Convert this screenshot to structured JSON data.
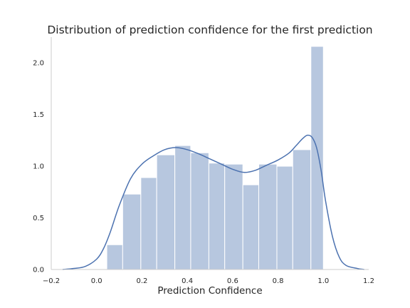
{
  "chart_data": {
    "type": "bar",
    "title": "Distribution of prediction confidence for the first prediction",
    "xlabel": "Prediction Confidence",
    "ylabel": "",
    "xlim": [
      -0.2,
      1.2
    ],
    "ylim": [
      0.0,
      2.25
    ],
    "x_ticks": [
      "-0.2",
      "0.0",
      "0.2",
      "0.4",
      "0.6",
      "0.8",
      "1.0",
      "1.2"
    ],
    "y_ticks": [
      "0.0",
      "0.5",
      "1.0",
      "1.5",
      "2.0"
    ],
    "grid": false,
    "legend": "none",
    "histogram": {
      "bin_edges": [
        0.045,
        0.115,
        0.195,
        0.265,
        0.345,
        0.415,
        0.495,
        0.565,
        0.645,
        0.715,
        0.795,
        0.865,
        0.945,
        1.0
      ],
      "values": [
        0.24,
        0.73,
        0.89,
        1.11,
        1.2,
        1.13,
        1.03,
        1.02,
        0.82,
        1.02,
        1.0,
        1.16,
        2.16
      ]
    },
    "kde_line": {
      "x": [
        -0.15,
        -0.1,
        -0.05,
        0.0,
        0.03,
        0.06,
        0.1,
        0.15,
        0.2,
        0.25,
        0.3,
        0.35,
        0.4,
        0.45,
        0.5,
        0.55,
        0.6,
        0.65,
        0.7,
        0.75,
        0.8,
        0.85,
        0.88,
        0.91,
        0.93,
        0.95,
        0.97,
        0.99,
        1.01,
        1.04,
        1.07,
        1.1,
        1.15,
        1.18
      ],
      "y": [
        0.0,
        0.01,
        0.03,
        0.1,
        0.2,
        0.36,
        0.62,
        0.88,
        1.02,
        1.1,
        1.16,
        1.18,
        1.16,
        1.12,
        1.07,
        1.02,
        0.97,
        0.94,
        0.96,
        1.01,
        1.06,
        1.13,
        1.2,
        1.27,
        1.3,
        1.28,
        1.18,
        0.96,
        0.66,
        0.32,
        0.12,
        0.04,
        0.01,
        0.0
      ]
    },
    "colors": {
      "bar_fill": "#4c72b0",
      "bar_opacity": 0.4,
      "bar_edge": "#ffffff",
      "line": "#4c72b0",
      "axis": "#cccccc",
      "text": "#262626"
    }
  }
}
